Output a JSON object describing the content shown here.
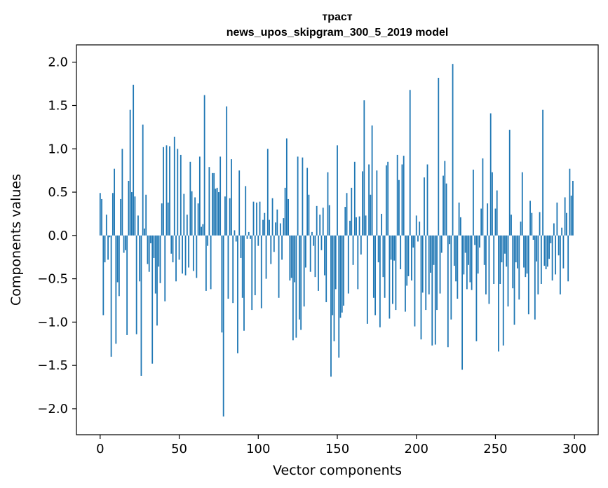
{
  "chart_data": {
    "type": "bar",
    "title_line1": "траст",
    "title_line2": "news_upos_skipgram_300_5_2019 model",
    "xlabel": "Vector components",
    "ylabel": "Components values",
    "xlim": [
      -15,
      315
    ],
    "ylim": [
      -2.3,
      2.2
    ],
    "xticks": [
      0,
      50,
      100,
      150,
      200,
      250,
      300
    ],
    "xtick_labels": [
      "0",
      "50",
      "100",
      "150",
      "200",
      "250",
      "300"
    ],
    "yticks": [
      -2.0,
      -1.5,
      -1.0,
      -0.5,
      0.0,
      0.5,
      1.0,
      1.5,
      2.0
    ],
    "ytick_labels": [
      "−2.0",
      "−1.5",
      "−1.0",
      "−0.5",
      "0.0",
      "0.5",
      "1.0",
      "1.5",
      "2.0"
    ],
    "bar_color": "#1f77b4",
    "values": [
      0.49,
      0.42,
      -0.92,
      -0.31,
      0.24,
      -0.28,
      -0.02,
      -1.4,
      0.49,
      0.77,
      -1.25,
      -0.54,
      -0.7,
      0.42,
      1.0,
      -0.2,
      -0.17,
      -1.15,
      0.63,
      1.45,
      0.5,
      1.74,
      0.45,
      -1.14,
      0.23,
      -0.53,
      -1.62,
      1.28,
      0.08,
      0.47,
      -0.33,
      -0.42,
      -0.09,
      -1.48,
      -0.26,
      -0.67,
      -1.04,
      -0.36,
      -0.55,
      0.37,
      1.02,
      -0.76,
      1.04,
      0.38,
      1.03,
      -0.21,
      -0.31,
      1.14,
      -0.53,
      1.0,
      -0.28,
      0.93,
      -0.44,
      0.48,
      -0.46,
      0.24,
      -0.37,
      0.85,
      0.51,
      -0.41,
      0.44,
      -0.49,
      0.37,
      0.91,
      0.1,
      0.13,
      1.62,
      -0.64,
      -0.12,
      0.79,
      -0.62,
      0.72,
      0.72,
      0.54,
      0.55,
      0.5,
      0.91,
      -1.12,
      -2.09,
      0.45,
      1.49,
      -0.73,
      0.43,
      0.88,
      -0.78,
      0.06,
      -0.07,
      -1.36,
      0.75,
      -0.26,
      -0.72,
      -1.1,
      0.57,
      -0.04,
      0.04,
      -0.04,
      -0.86,
      0.39,
      -0.69,
      0.38,
      -0.12,
      0.39,
      -0.84,
      0.18,
      0.26,
      -0.5,
      1.0,
      0.18,
      -0.33,
      0.43,
      -0.19,
      0.15,
      0.3,
      -0.72,
      0.14,
      -0.28,
      0.2,
      0.55,
      1.12,
      0.42,
      -0.52,
      -0.49,
      -1.21,
      -0.54,
      -1.18,
      0.91,
      -0.97,
      -1.09,
      0.9,
      -0.82,
      -0.37,
      0.78,
      0.47,
      -0.42,
      0.04,
      -0.12,
      -0.48,
      0.34,
      -0.64,
      0.24,
      -0.17,
      0.32,
      -0.46,
      -0.77,
      0.73,
      0.35,
      -1.63,
      -0.92,
      -1.22,
      -0.62,
      1.04,
      -1.41,
      -0.95,
      -0.89,
      -0.81,
      0.33,
      0.49,
      -0.67,
      0.17,
      0.55,
      -0.34,
      0.85,
      0.21,
      -0.62,
      0.22,
      -0.22,
      0.74,
      1.56,
      0.23,
      -1.02,
      0.82,
      0.47,
      1.27,
      -0.72,
      -0.92,
      0.75,
      -0.31,
      -1.06,
      0.25,
      -0.48,
      -0.72,
      0.81,
      0.85,
      -0.96,
      -0.28,
      -0.79,
      -0.29,
      -0.86,
      0.93,
      0.64,
      -0.39,
      0.82,
      0.92,
      -0.88,
      -0.58,
      -0.47,
      1.68,
      -0.52,
      -0.14,
      -1.05,
      0.23,
      -0.07,
      0.16,
      -1.2,
      -0.66,
      0.67,
      -0.86,
      0.82,
      -0.68,
      -0.43,
      -1.27,
      -0.34,
      -1.26,
      -0.86,
      1.82,
      -0.67,
      -0.2,
      0.69,
      0.86,
      0.6,
      -1.29,
      -0.1,
      -0.97,
      1.98,
      -0.35,
      -0.53,
      -0.73,
      0.38,
      0.21,
      -1.55,
      -0.45,
      -0.2,
      -0.62,
      -0.34,
      -0.54,
      -0.63,
      0.76,
      -0.11,
      -1.22,
      -0.44,
      -0.14,
      0.31,
      0.89,
      -0.34,
      -0.68,
      0.37,
      -0.79,
      1.41,
      0.73,
      -0.56,
      0.31,
      0.52,
      -1.34,
      -0.56,
      -0.31,
      -1.27,
      -0.21,
      -0.36,
      -0.82,
      1.22,
      0.24,
      -0.61,
      -1.03,
      -0.31,
      -0.38,
      -0.74,
      0.16,
      0.73,
      -0.37,
      -0.48,
      -0.44,
      -0.91,
      0.4,
      0.26,
      -0.05,
      -0.97,
      -0.3,
      -0.68,
      0.27,
      -0.56,
      1.45,
      -0.35,
      -0.39,
      -0.36,
      -0.27,
      -0.09,
      -0.52,
      0.14,
      -0.45,
      0.38,
      -0.23,
      -0.68,
      0.09,
      -0.38,
      0.44,
      0.26,
      -0.53,
      0.77,
      0.46,
      0.63
    ]
  }
}
